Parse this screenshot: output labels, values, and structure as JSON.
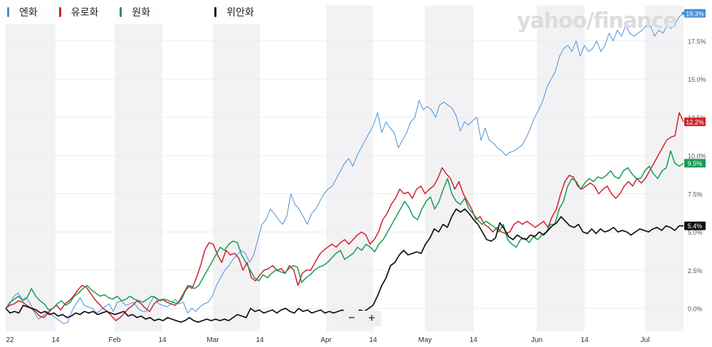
{
  "watermark": "yahoo/finance",
  "legend": [
    {
      "name": "엔화",
      "color": "#4a90d9"
    },
    {
      "name": "유로화",
      "color": "#d0202e"
    },
    {
      "name": "원화",
      "color": "#1a9a52"
    },
    {
      "name": "위안화",
      "color": "#111111"
    }
  ],
  "zoom": {
    "minus": "−",
    "plus": "+"
  },
  "chart_data": {
    "type": "line",
    "x_ticks": [
      "22",
      "14",
      "Feb",
      "14",
      "Mar",
      "14",
      "Apr",
      "14",
      "May",
      "14",
      "Jun",
      "14",
      "Jul"
    ],
    "y_ticks": [
      "0.0%",
      "2.5%",
      "5.0%",
      "7.5%",
      "10.0%",
      "12.5%",
      "15.0%",
      "17.5%"
    ],
    "ylim": [
      -1.5,
      19.8
    ],
    "last_value_labels": [
      "19.3%",
      "12.2%",
      "9.5%",
      "5.4%"
    ],
    "series": [
      {
        "name": "엔화",
        "color": "#4a90d9",
        "values": [
          0.0,
          0.3,
          0.8,
          1.0,
          0.6,
          0.7,
          0.3,
          -0.3,
          -0.7,
          -0.5,
          -0.2,
          -0.4,
          -0.6,
          -0.8,
          -1.0,
          -0.9,
          -0.2,
          0.3,
          0.7,
          0.2,
          0.1,
          0.0,
          -0.3,
          -0.1,
          0.1,
          0.3,
          -0.2,
          0.4,
          0.5,
          0.2,
          0.3,
          0.4,
          0.0,
          -0.2,
          -0.2,
          0.4,
          0.8,
          0.3,
          0.2,
          0.1,
          0.3,
          0.6,
          0.3,
          0.4,
          -0.3,
          0.0,
          -0.2,
          0.1,
          0.3,
          0.4,
          0.8,
          1.5,
          2.0,
          2.5,
          2.8,
          3.2,
          3.5,
          3.8,
          3.6,
          3.0,
          3.5,
          4.5,
          5.5,
          5.8,
          6.5,
          6.2,
          5.8,
          5.5,
          6.0,
          7.5,
          6.8,
          6.5,
          6.0,
          5.5,
          6.2,
          6.5,
          7.0,
          7.5,
          7.8,
          8.0,
          8.5,
          9.0,
          9.5,
          9.8,
          9.3,
          10.0,
          10.5,
          11.0,
          11.5,
          12.0,
          12.8,
          11.5,
          12.2,
          11.8,
          11.5,
          10.5,
          11.0,
          11.5,
          12.2,
          12.5,
          13.6,
          13.0,
          13.2,
          13.0,
          12.5,
          13.3,
          13.5,
          13.3,
          13.1,
          12.6,
          11.6,
          12.2,
          12.0,
          12.3,
          12.5,
          11.0,
          11.8,
          11.0,
          10.8,
          10.5,
          10.3,
          10.0,
          10.2,
          10.3,
          10.5,
          10.7,
          11.2,
          11.8,
          12.5,
          13.0,
          13.6,
          14.5,
          15.0,
          15.5,
          16.5,
          17.0,
          17.2,
          16.8,
          17.5,
          16.5,
          17.2,
          16.8,
          17.0,
          17.5,
          16.8,
          17.2,
          18.0,
          17.5,
          18.2,
          17.8,
          18.5,
          18.0,
          17.8,
          18.0,
          18.2,
          18.5,
          18.5,
          17.8,
          18.2,
          18.0,
          18.5,
          18.3,
          18.6,
          19.1,
          19.3
        ]
      },
      {
        "name": "유로화",
        "color": "#d0202e",
        "values": [
          0.0,
          0.2,
          0.3,
          0.5,
          0.4,
          0.2,
          0.0,
          -0.2,
          -0.5,
          -0.6,
          -0.3,
          0.0,
          0.2,
          -0.1,
          0.3,
          0.5,
          0.8,
          1.2,
          1.5,
          1.4,
          1.0,
          0.6,
          0.3,
          0.0,
          -0.2,
          -0.5,
          -0.8,
          -0.6,
          -0.3,
          0.0,
          0.2,
          0.5,
          0.3,
          0.0,
          -0.2,
          0.3,
          0.5,
          0.6,
          0.4,
          0.3,
          0.2,
          0.5,
          1.0,
          1.5,
          1.3,
          2.0,
          2.8,
          3.8,
          4.3,
          4.2,
          3.5,
          3.0,
          3.8,
          3.5,
          3.6,
          3.3,
          2.5,
          3.0,
          2.0,
          1.8,
          2.2,
          2.5,
          2.6,
          2.8,
          2.5,
          2.6,
          2.3,
          2.8,
          2.5,
          1.5,
          2.3,
          2.5,
          2.5,
          3.0,
          3.5,
          3.8,
          4.0,
          4.2,
          4.0,
          4.3,
          4.5,
          4.2,
          4.5,
          4.8,
          5.0,
          4.8,
          4.2,
          4.5,
          5.0,
          5.8,
          6.2,
          6.8,
          7.2,
          7.8,
          7.5,
          7.6,
          7.2,
          7.8,
          8.0,
          7.5,
          7.8,
          8.0,
          8.5,
          9.2,
          8.8,
          8.5,
          7.8,
          8.3,
          7.5,
          7.0,
          6.5,
          5.8,
          6.0,
          5.5,
          5.3,
          5.0,
          5.3,
          5.0,
          4.9,
          5.0,
          5.5,
          5.7,
          5.5,
          5.7,
          5.5,
          5.3,
          5.5,
          5.7,
          5.3,
          6.0,
          6.5,
          7.5,
          8.3,
          8.7,
          8.6,
          8.0,
          7.8,
          8.0,
          8.2,
          8.0,
          7.5,
          7.8,
          8.0,
          7.5,
          7.2,
          7.5,
          8.0,
          8.3,
          8.0,
          8.5,
          8.2,
          8.5,
          9.0,
          9.5,
          10.0,
          10.5,
          11.0,
          11.2,
          11.3,
          12.8,
          12.2
        ]
      },
      {
        "name": "원화",
        "color": "#1a9a52",
        "values": [
          0.0,
          0.4,
          0.6,
          0.8,
          0.5,
          0.7,
          1.3,
          0.8,
          0.5,
          0.3,
          -0.1,
          0.0,
          0.3,
          0.5,
          0.2,
          0.4,
          0.8,
          1.0,
          1.3,
          1.5,
          1.2,
          1.0,
          0.8,
          0.9,
          0.7,
          0.6,
          0.8,
          0.5,
          0.6,
          0.8,
          0.6,
          0.5,
          0.4,
          0.6,
          0.8,
          0.7,
          0.5,
          0.6,
          0.5,
          0.4,
          0.3,
          0.6,
          1.2,
          1.5,
          1.3,
          1.5,
          2.0,
          2.5,
          3.0,
          3.5,
          4.0,
          3.8,
          4.2,
          4.4,
          4.3,
          3.5,
          3.0,
          2.5,
          2.0,
          1.8,
          2.2,
          2.0,
          2.3,
          2.5,
          2.4,
          2.3,
          2.6,
          2.8,
          2.7,
          1.7,
          2.0,
          2.2,
          2.5,
          2.7,
          2.8,
          3.0,
          3.3,
          3.6,
          3.8,
          3.2,
          3.4,
          3.6,
          4.0,
          3.8,
          4.2,
          4.0,
          3.7,
          4.2,
          4.5,
          5.0,
          5.5,
          6.0,
          6.5,
          7.0,
          6.6,
          6.0,
          5.8,
          6.5,
          7.0,
          7.3,
          6.5,
          7.0,
          7.8,
          8.5,
          7.5,
          7.0,
          6.8,
          7.2,
          6.5,
          6.2,
          5.8,
          5.5,
          5.7,
          5.5,
          5.3,
          5.0,
          5.5,
          4.5,
          4.2,
          4.0,
          4.5,
          4.6,
          4.3,
          4.7,
          4.5,
          4.8,
          5.0,
          5.5,
          5.5,
          6.5,
          7.0,
          8.0,
          8.5,
          8.3,
          7.8,
          8.2,
          8.5,
          8.3,
          8.6,
          8.5,
          8.7,
          9.0,
          8.6,
          8.5,
          9.0,
          9.2,
          8.8,
          8.5,
          8.5,
          9.0,
          9.3,
          8.8,
          8.5,
          9.0,
          9.2,
          10.3,
          9.5,
          9.3,
          9.5
        ]
      },
      {
        "name": "위안화",
        "color": "#111111",
        "values": [
          0.0,
          -0.3,
          -0.2,
          -0.3,
          0.2,
          0.1,
          0.0,
          -0.1,
          -0.3,
          -0.2,
          -0.4,
          -0.3,
          -0.5,
          -0.4,
          -0.6,
          -0.5,
          -0.3,
          -0.4,
          -0.2,
          -0.3,
          -0.2,
          -0.4,
          -0.3,
          -0.2,
          -0.3,
          -0.4,
          -0.3,
          -0.2,
          -0.5,
          -0.4,
          -0.6,
          -0.5,
          -0.7,
          -0.6,
          -0.8,
          -0.7,
          -0.8,
          -0.6,
          -0.7,
          -0.8,
          -0.9,
          -0.8,
          -0.6,
          -0.8,
          -0.9,
          -0.8,
          -0.7,
          -0.8,
          -0.7,
          -0.8,
          -0.7,
          -0.8,
          -0.6,
          -0.4,
          -0.5,
          -0.6,
          0.0,
          -0.2,
          -0.1,
          -0.3,
          -0.2,
          -0.1,
          -0.3,
          -0.1,
          0.0,
          -0.2,
          -0.3,
          0.0,
          -0.2,
          -0.1,
          -0.3,
          -0.2,
          -0.1,
          -0.3,
          -0.2,
          -0.3,
          -0.2,
          -0.1,
          -0.3,
          -0.2,
          -0.3,
          -0.1,
          -0.2,
          0.0,
          0.2,
          0.8,
          1.5,
          2.0,
          2.8,
          3.0,
          3.5,
          3.8,
          3.5,
          3.6,
          3.7,
          3.6,
          4.2,
          4.6,
          5.2,
          5.0,
          5.5,
          5.3,
          6.0,
          6.5,
          6.3,
          6.5,
          6.2,
          5.8,
          5.5,
          5.0,
          4.5,
          4.4,
          4.6,
          5.6,
          5.2,
          4.7,
          4.5,
          4.8,
          4.6,
          4.5,
          4.8,
          4.7,
          5.0,
          4.8,
          5.1,
          5.4,
          5.6,
          6.0,
          5.7,
          5.4,
          5.3,
          5.5,
          5.0,
          4.9,
          5.2,
          4.9,
          5.2,
          5.0,
          5.1,
          5.3,
          5.0,
          5.1,
          5.0,
          4.8,
          5.0,
          5.2,
          5.1,
          5.0,
          5.2,
          5.3,
          5.1,
          5.4,
          5.3,
          5.1,
          5.4,
          5.4
        ]
      }
    ]
  }
}
